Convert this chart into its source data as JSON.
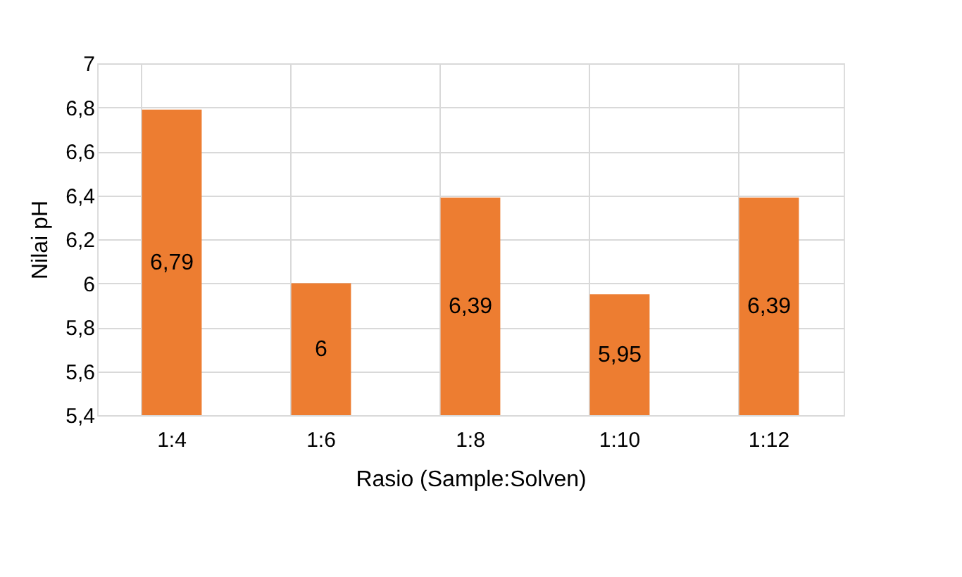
{
  "chart_data": {
    "type": "bar",
    "xlabel": "Rasio (Sample:Solven)",
    "ylabel": "Nilai pH",
    "categories": [
      "1:4",
      "1:6",
      "1:8",
      "1:10",
      "1:12"
    ],
    "values": [
      6.79,
      6,
      6.39,
      5.95,
      6.39
    ],
    "value_labels": [
      "6,79",
      "6",
      "6,39",
      "5,95",
      "6,39"
    ],
    "color": "#ed7d31",
    "ylim": [
      5.4,
      7
    ],
    "yticks": [
      {
        "value": 5.4,
        "label": "5,4"
      },
      {
        "value": 5.6,
        "label": "5,6"
      },
      {
        "value": 5.8,
        "label": "5,8"
      },
      6,
      {
        "value": 6.2,
        "label": "6,2"
      },
      {
        "value": 6.4,
        "label": "6,4"
      },
      {
        "value": 6.6,
        "label": "6,6"
      },
      {
        "value": 6.8,
        "label": "6,8"
      },
      7
    ],
    "grid": true
  }
}
